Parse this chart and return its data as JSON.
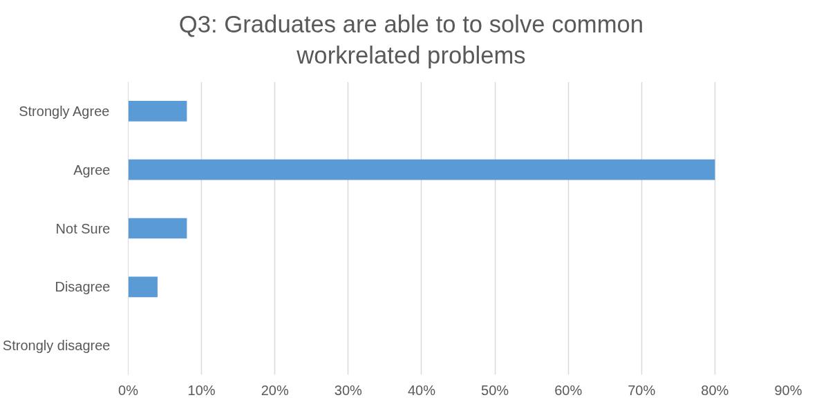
{
  "chart_data": {
    "type": "bar",
    "orientation": "horizontal",
    "title": "Q3: Graduates are able to to solve common workrelated problems",
    "categories": [
      "Strongly Agree",
      "Agree",
      "Not Sure",
      "Disagree",
      "Strongly disagree"
    ],
    "values": [
      8,
      80,
      8,
      4,
      0
    ],
    "color": "#5b9bd5",
    "xlim": [
      0,
      90
    ],
    "xticks": [
      {
        "value": 0,
        "label": "0%"
      },
      {
        "value": 10,
        "label": "10%"
      },
      {
        "value": 20,
        "label": "20%"
      },
      {
        "value": 30,
        "label": "30%"
      },
      {
        "value": 40,
        "label": "40%"
      },
      {
        "value": 50,
        "label": "50%"
      },
      {
        "value": 60,
        "label": "60%"
      },
      {
        "value": 70,
        "label": "70%"
      },
      {
        "value": 80,
        "label": "80%"
      },
      {
        "value": 90,
        "label": "90%"
      }
    ],
    "grid": "x"
  }
}
